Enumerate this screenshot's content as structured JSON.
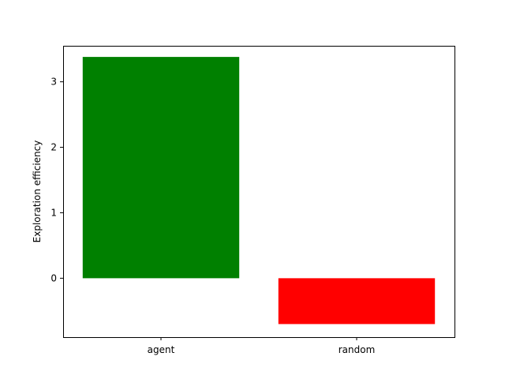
{
  "chart_data": {
    "type": "bar",
    "categories": [
      "agent",
      "random"
    ],
    "values": [
      3.38,
      -0.7
    ],
    "colors": [
      "#008000",
      "#ff0000"
    ],
    "title": "",
    "xlabel": "",
    "ylabel": "Exploration efficiency",
    "ylim": [
      -0.9,
      3.55
    ],
    "yticks": [
      0,
      1,
      2,
      3
    ],
    "ytick_labels": [
      "0",
      "1",
      "2",
      "3"
    ],
    "grid": false,
    "legend": "none"
  }
}
